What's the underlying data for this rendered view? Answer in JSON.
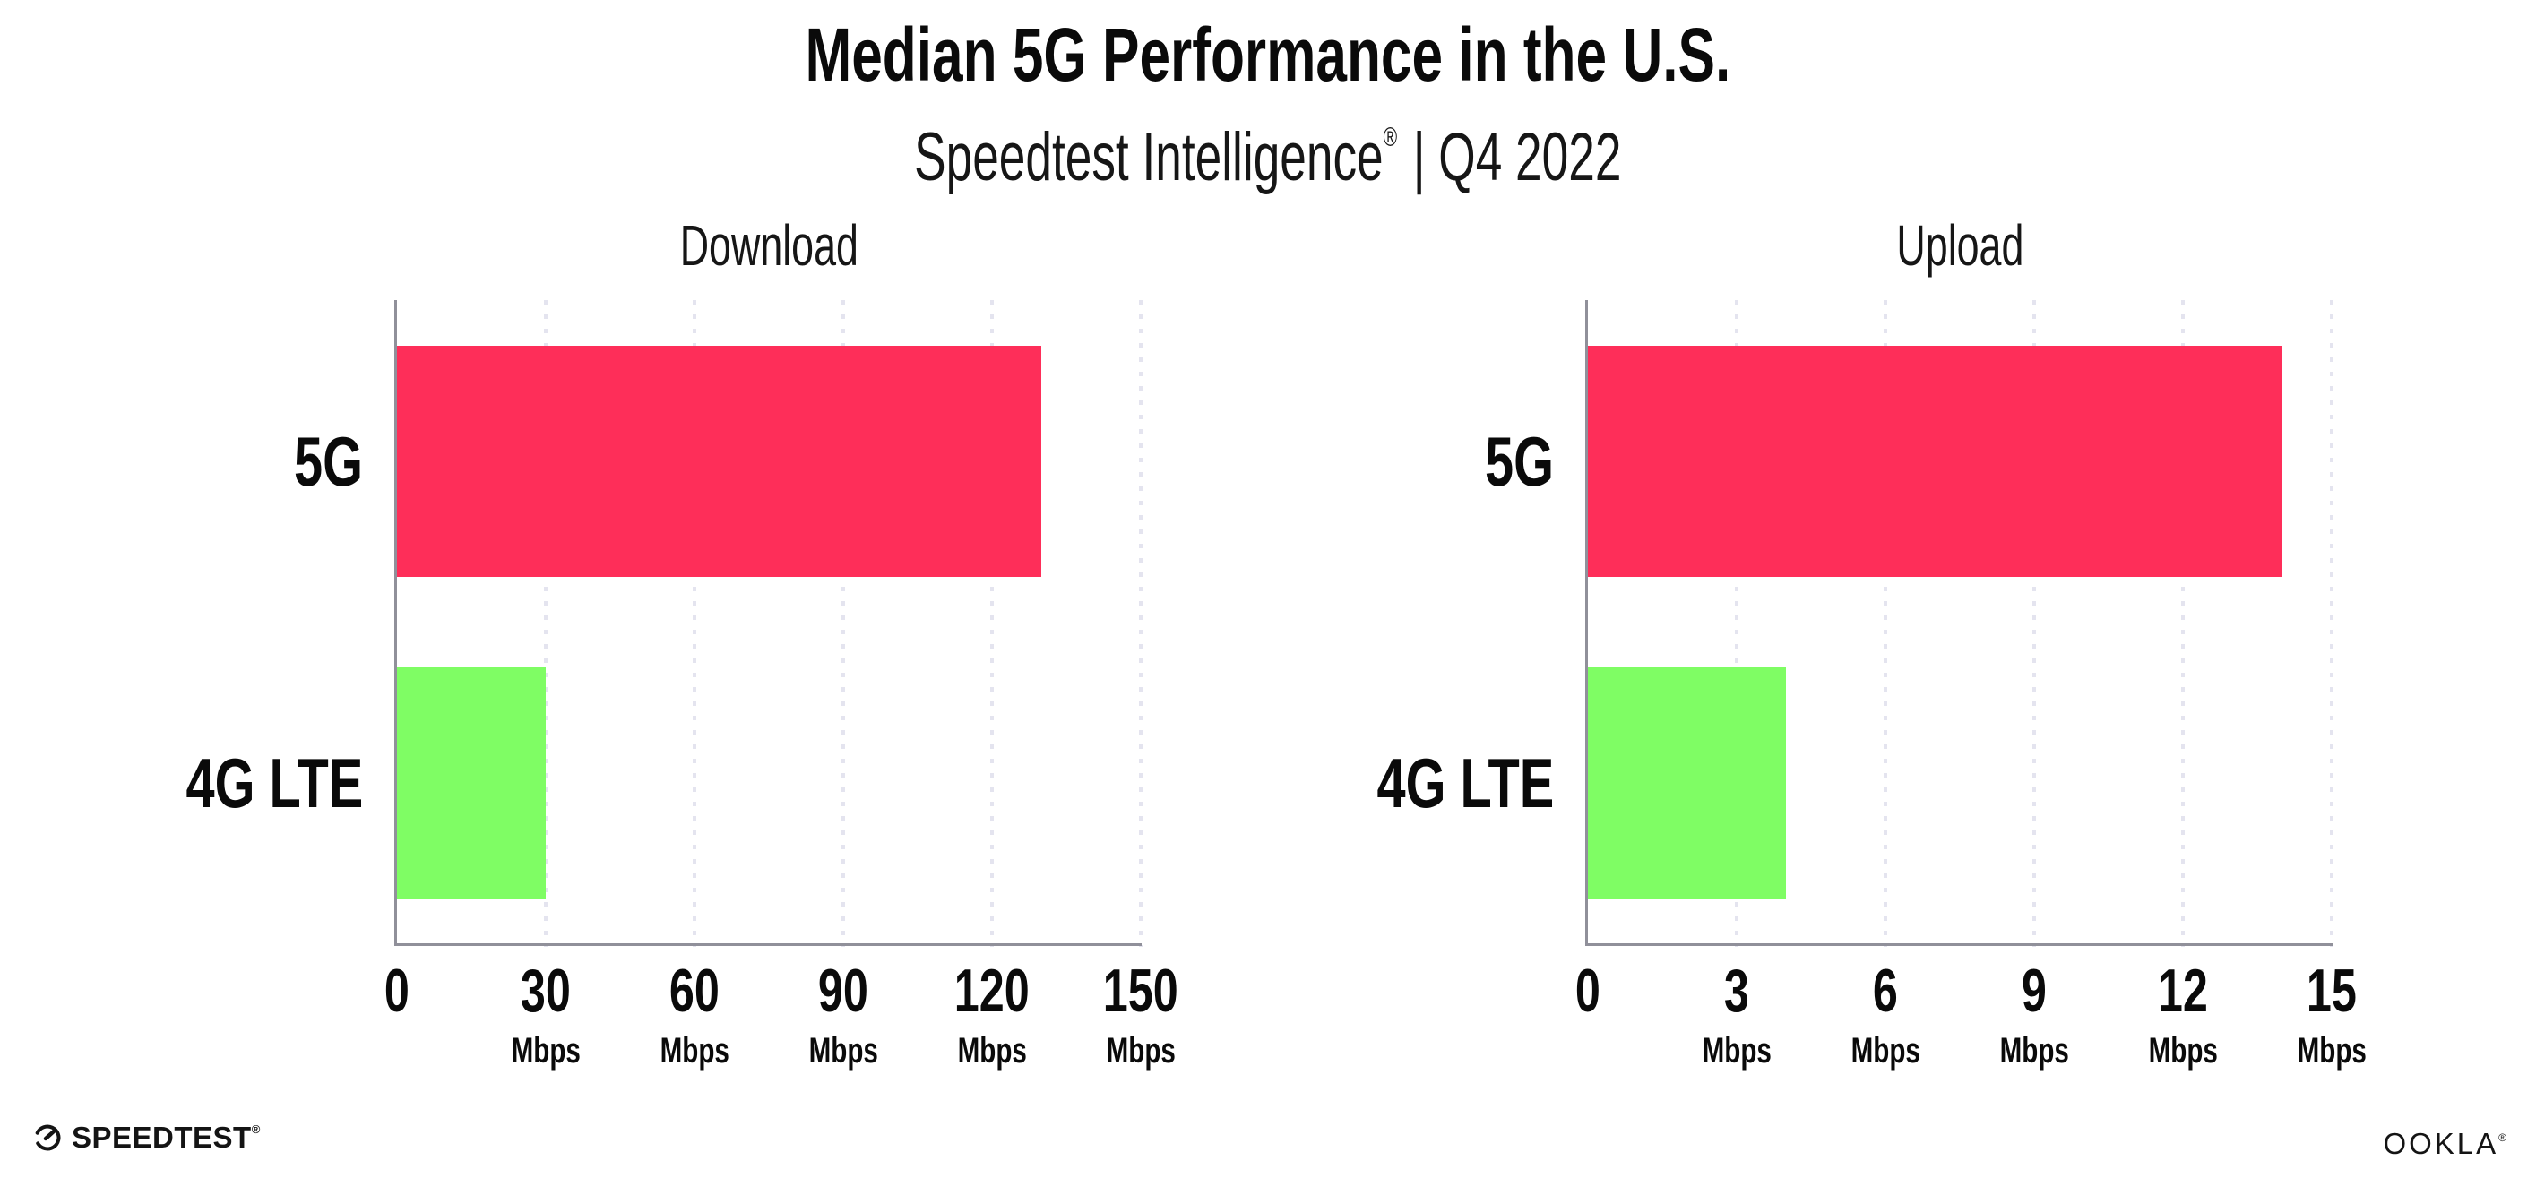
{
  "header": {
    "title": "Median 5G Performance in the U.S.",
    "subtitle_brand": "Speedtest Intelligence",
    "subtitle_reg": "®",
    "subtitle_rest": "| Q4 2022"
  },
  "footer": {
    "speedtest_label": "SPEEDTEST",
    "speedtest_mark": "®",
    "ookla_label": "OOKLA",
    "ookla_mark": "®"
  },
  "colors": {
    "bar_5g": "#FE2E59",
    "bar_4g_lte": "#7FFD64",
    "gridline": "#E4E4EF",
    "axis": "#90909A",
    "text": "#0A0A0A"
  },
  "chart_data": [
    {
      "type": "bar",
      "orientation": "horizontal",
      "title": "Download",
      "categories": [
        "5G",
        "4G LTE"
      ],
      "values": [
        130,
        30
      ],
      "unit": "Mbps",
      "xlim": [
        0,
        150
      ],
      "xticks": [
        0,
        30,
        60,
        90,
        120,
        150
      ],
      "tick_unit_label": "Mbps",
      "bar_colors": [
        "#FE2E59",
        "#7FFD64"
      ],
      "grid": "dotted-vertical-at-ticks",
      "legend": "none"
    },
    {
      "type": "bar",
      "orientation": "horizontal",
      "title": "Upload",
      "categories": [
        "5G",
        "4G LTE"
      ],
      "values": [
        14,
        4
      ],
      "unit": "Mbps",
      "xlim": [
        0,
        15
      ],
      "xticks": [
        0,
        3,
        6,
        9,
        12,
        15
      ],
      "tick_unit_label": "Mbps",
      "bar_colors": [
        "#FE2E59",
        "#7FFD64"
      ],
      "grid": "dotted-vertical-at-ticks",
      "legend": "none"
    }
  ]
}
